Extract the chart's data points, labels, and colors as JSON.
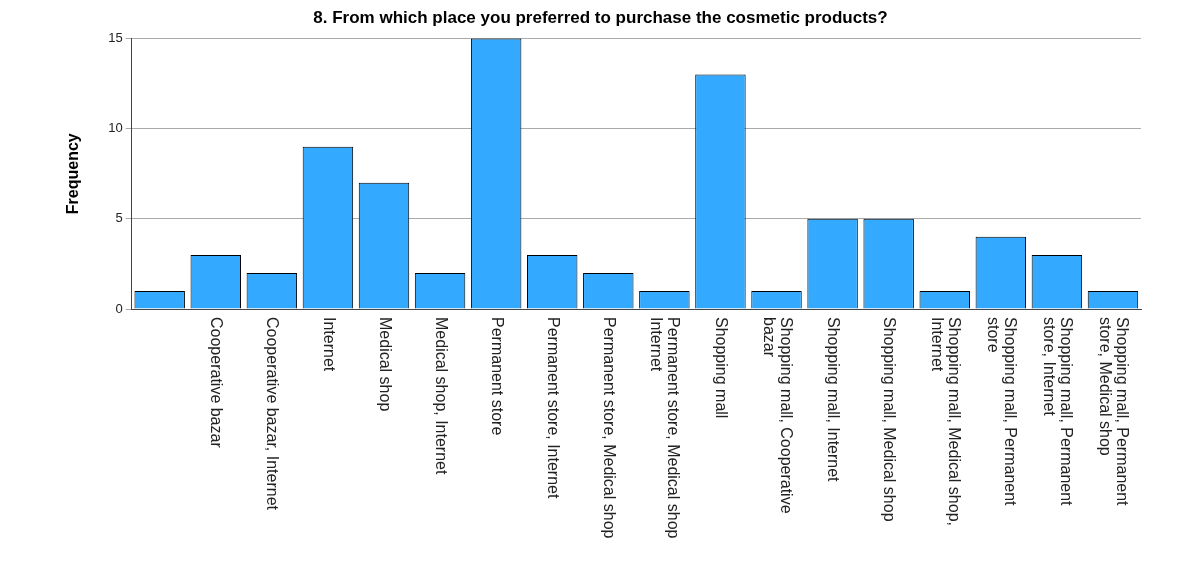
{
  "chart_data": {
    "type": "bar",
    "title": "8. From which place you preferred to purchase the cosmetic products?",
    "ylabel": "Frequency",
    "categories": [
      null,
      "Cooperative bazar",
      "Cooperative bazar, Internet",
      "Internet",
      "Medical shop",
      "Medical shop, Internet",
      "Permanent store",
      "Permanent store, Internet",
      "Permanent store, Medical shop",
      "Permanent store, Medical shop\nInternet",
      "Shopping mall",
      "Shopping mall, Cooperative\nbazar",
      "Shopping mall, Internet",
      "Shopping mall, Medical shop",
      "Shopping mall, Medical shop,\nInternet",
      "Shopping mall, Permanent\nstore",
      "Shopping mall, Permanent\nstore, Internet",
      "Shopping mall, Permanent\nstore, Medical shop"
    ],
    "values": [
      1,
      3,
      2,
      9,
      7,
      2,
      15,
      3,
      2,
      1,
      13,
      1,
      5,
      5,
      1,
      4,
      3,
      1
    ],
    "color": "#33aaff",
    "ylim": [
      0,
      15
    ],
    "yticks": [
      0,
      5,
      10,
      15
    ],
    "grid": "y",
    "legend": false
  }
}
